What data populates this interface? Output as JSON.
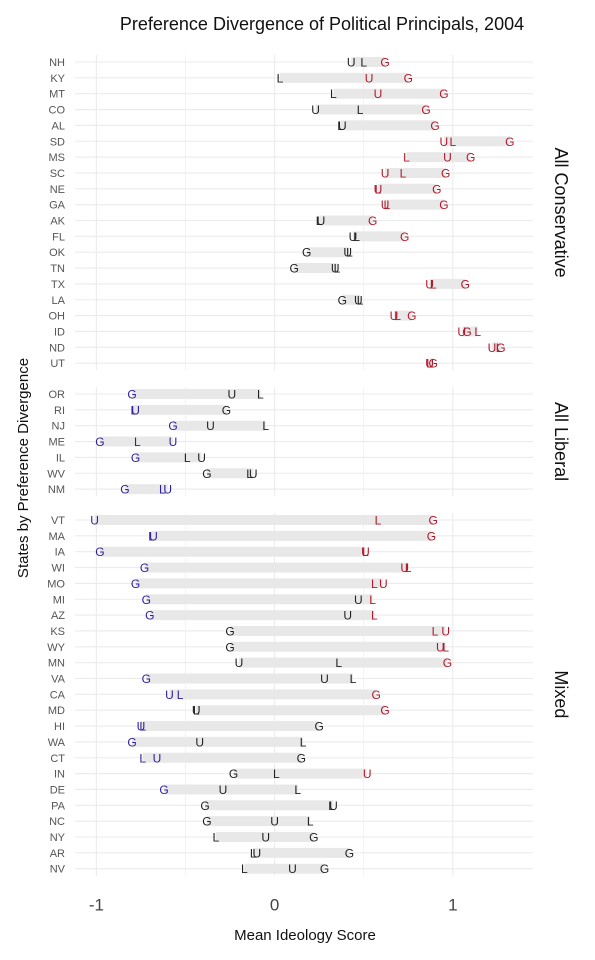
{
  "chart_data": {
    "type": "dot-range",
    "title": "Preference Divergence of Political Principals, 2004",
    "xlabel": "Mean Ideology Score",
    "ylabel": "States by Preference Divergence",
    "xlim": [
      -1.12,
      1.45
    ],
    "xticks": [
      -1,
      0,
      1
    ],
    "xtick_labels": [
      "-1",
      "0",
      "1"
    ],
    "grid": true,
    "marker_labels": [
      "G",
      "L",
      "U"
    ],
    "colors": {
      "conservative": "#b2182b",
      "liberal": "#2c1ea0",
      "neutral": "#222222",
      "range": "#e8e8e8",
      "grid": "#ebebeb"
    },
    "panels": [
      {
        "label": "All Conservative",
        "rows": [
          {
            "state": "NH",
            "G": 0.62,
            "L": 0.5,
            "U": 0.43
          },
          {
            "state": "KY",
            "G": 0.75,
            "L": 0.03,
            "U": 0.53
          },
          {
            "state": "MT",
            "G": 0.95,
            "L": 0.33,
            "U": 0.58
          },
          {
            "state": "CO",
            "G": 0.85,
            "L": 0.48,
            "U": 0.23
          },
          {
            "state": "AL",
            "G": 0.9,
            "L": 0.37,
            "U": 0.38
          },
          {
            "state": "SD",
            "G": 1.32,
            "L": 1.0,
            "U": 0.95
          },
          {
            "state": "MS",
            "G": 1.1,
            "L": 0.74,
            "U": 0.97
          },
          {
            "state": "SC",
            "G": 0.96,
            "L": 0.72,
            "U": 0.62
          },
          {
            "state": "NE",
            "G": 0.91,
            "L": 0.58,
            "U": 0.58
          },
          {
            "state": "GA",
            "G": 0.95,
            "L": 0.63,
            "U": 0.62
          },
          {
            "state": "AK",
            "G": 0.55,
            "L": 0.25,
            "U": 0.26
          },
          {
            "state": "FL",
            "G": 0.73,
            "L": 0.46,
            "U": 0.44
          },
          {
            "state": "OK",
            "G": 0.18,
            "L": 0.42,
            "U": 0.41
          },
          {
            "state": "TN",
            "G": 0.11,
            "L": 0.35,
            "U": 0.34
          },
          {
            "state": "TX",
            "G": 1.07,
            "L": 0.89,
            "U": 0.87
          },
          {
            "state": "LA",
            "G": 0.38,
            "L": 0.48,
            "U": 0.47
          },
          {
            "state": "OH",
            "G": 0.77,
            "L": 0.69,
            "U": 0.67
          },
          {
            "state": "ID",
            "G": 1.08,
            "L": 1.14,
            "U": 1.05
          },
          {
            "state": "ND",
            "G": 1.27,
            "L": 1.26,
            "U": 1.22
          },
          {
            "state": "UT",
            "G": 0.89,
            "L": 0.87,
            "U": 0.87
          }
        ]
      },
      {
        "label": "All Liberal",
        "rows": [
          {
            "state": "OR",
            "G": -0.8,
            "L": -0.08,
            "U": -0.24
          },
          {
            "state": "RI",
            "G": -0.27,
            "L": -0.79,
            "U": -0.78
          },
          {
            "state": "NJ",
            "G": -0.57,
            "L": -0.05,
            "U": -0.36
          },
          {
            "state": "ME",
            "G": -0.98,
            "L": -0.77,
            "U": -0.57
          },
          {
            "state": "IL",
            "G": -0.78,
            "L": -0.49,
            "U": -0.41
          },
          {
            "state": "WV",
            "G": -0.38,
            "L": -0.14,
            "U": -0.12
          },
          {
            "state": "NM",
            "G": -0.84,
            "L": -0.63,
            "U": -0.6
          }
        ]
      },
      {
        "label": "Mixed",
        "rows": [
          {
            "state": "VT",
            "G": 0.89,
            "L": 0.58,
            "U": -1.01
          },
          {
            "state": "MA",
            "G": 0.88,
            "L": -0.69,
            "U": -0.68
          },
          {
            "state": "IA",
            "G": -0.98,
            "L": 0.51,
            "U": 0.51
          },
          {
            "state": "WI",
            "G": -0.73,
            "L": 0.75,
            "U": 0.73
          },
          {
            "state": "MO",
            "G": -0.78,
            "L": 0.56,
            "U": 0.61
          },
          {
            "state": "MI",
            "G": -0.72,
            "L": 0.55,
            "U": 0.47
          },
          {
            "state": "AZ",
            "G": -0.7,
            "L": 0.56,
            "U": 0.41
          },
          {
            "state": "KS",
            "G": -0.25,
            "L": 0.9,
            "U": 0.96
          },
          {
            "state": "WY",
            "G": -0.25,
            "L": 0.96,
            "U": 0.93
          },
          {
            "state": "MN",
            "G": 0.97,
            "L": 0.36,
            "U": -0.2
          },
          {
            "state": "VA",
            "G": -0.72,
            "L": 0.44,
            "U": 0.28
          },
          {
            "state": "CA",
            "G": 0.57,
            "L": -0.53,
            "U": -0.59
          },
          {
            "state": "MD",
            "G": 0.62,
            "L": -0.44,
            "U": -0.44
          },
          {
            "state": "HI",
            "G": 0.25,
            "L": -0.74,
            "U": -0.75
          },
          {
            "state": "WA",
            "G": -0.8,
            "L": 0.16,
            "U": -0.42
          },
          {
            "state": "CT",
            "G": 0.15,
            "L": -0.74,
            "U": -0.66
          },
          {
            "state": "IN",
            "G": -0.23,
            "L": 0.01,
            "U": 0.52
          },
          {
            "state": "DE",
            "G": -0.62,
            "L": 0.13,
            "U": -0.29
          },
          {
            "state": "PA",
            "G": -0.39,
            "L": 0.32,
            "U": 0.33
          },
          {
            "state": "NC",
            "G": -0.38,
            "L": 0.2,
            "U": 0.0
          },
          {
            "state": "NY",
            "G": 0.22,
            "L": -0.33,
            "U": -0.05
          },
          {
            "state": "AR",
            "G": 0.42,
            "L": -0.12,
            "U": -0.1
          },
          {
            "state": "NV",
            "G": 0.28,
            "L": -0.17,
            "U": 0.1
          }
        ]
      }
    ]
  }
}
